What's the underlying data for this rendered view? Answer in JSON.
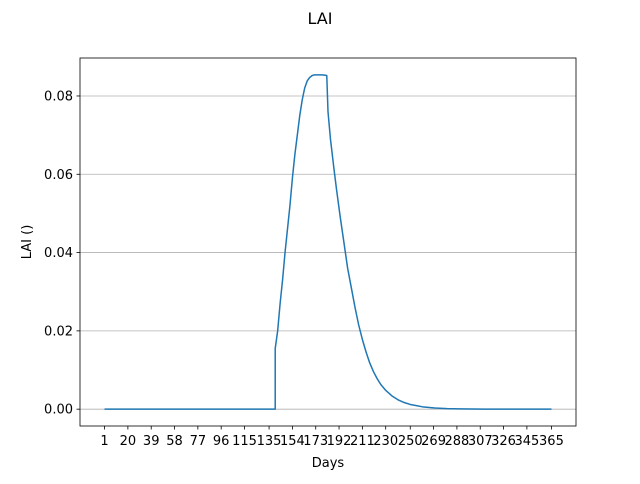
{
  "chart_data": {
    "type": "line",
    "title": "LAI",
    "xlabel": "Days",
    "ylabel": "LAI ()",
    "xlim": [
      -19,
      385
    ],
    "ylim": [
      -0.0043,
      0.0897
    ],
    "grid": "y",
    "line_color": "#1f77b4",
    "x_ticks": [
      1,
      20,
      39,
      58,
      77,
      96,
      115,
      135,
      154,
      173,
      192,
      211,
      230,
      250,
      269,
      288,
      307,
      326,
      345,
      365
    ],
    "x_tick_labels": [
      "1",
      "20",
      "39",
      "58",
      "77",
      "96",
      "115",
      "135",
      "154",
      "173",
      "192",
      "211",
      "230",
      "250",
      "269",
      "288",
      "307",
      "326",
      "345",
      "365"
    ],
    "y_ticks": [
      0.0,
      0.02,
      0.04,
      0.06,
      0.08
    ],
    "y_tick_labels": [
      "0.00",
      "0.02",
      "0.04",
      "0.06",
      "0.08"
    ],
    "series": [
      {
        "x": [
          1,
          100,
          140,
          140,
          142,
          144,
          146,
          148,
          150,
          152,
          154,
          156,
          158,
          160,
          162,
          164,
          166,
          168,
          170,
          172,
          175,
          178,
          181,
          182,
          183,
          185,
          188,
          190,
          193,
          196,
          199,
          202,
          205,
          208,
          211,
          214,
          217,
          220,
          223,
          226,
          230,
          235,
          240,
          245,
          250,
          255,
          260,
          270,
          280,
          290,
          300,
          310,
          320,
          330,
          340,
          350,
          365
        ],
        "y": [
          0.0,
          0.0,
          0.0,
          0.0155,
          0.02,
          0.027,
          0.033,
          0.04,
          0.046,
          0.052,
          0.059,
          0.065,
          0.07,
          0.075,
          0.079,
          0.082,
          0.0838,
          0.0847,
          0.0852,
          0.0854,
          0.0854,
          0.0854,
          0.0853,
          0.0852,
          0.076,
          0.069,
          0.061,
          0.056,
          0.049,
          0.0425,
          0.036,
          0.031,
          0.026,
          0.0215,
          0.0178,
          0.0146,
          0.0118,
          0.0096,
          0.0078,
          0.0063,
          0.0048,
          0.0034,
          0.0024,
          0.0017,
          0.0012,
          0.0009,
          0.0006,
          0.0003,
          0.00015,
          8e-05,
          4e-05,
          2e-05,
          1e-05,
          0.0,
          0.0,
          0.0,
          0.0
        ]
      }
    ]
  }
}
